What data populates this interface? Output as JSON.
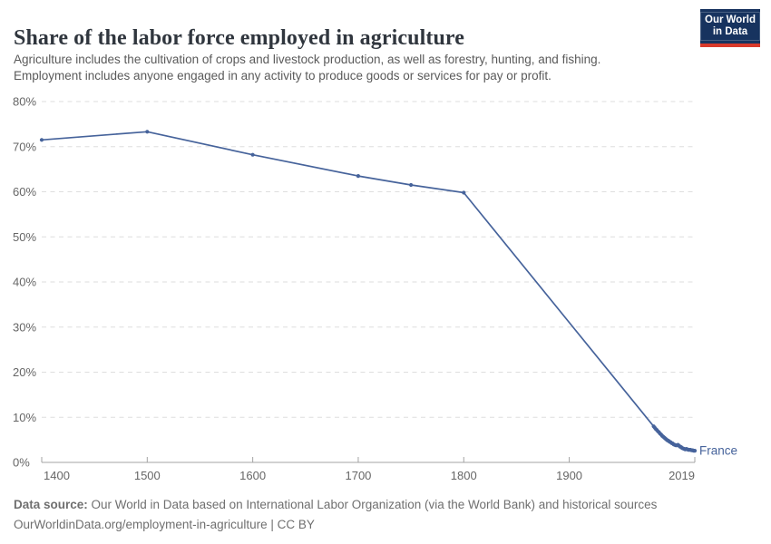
{
  "header": {
    "title": "Share of the labor force employed in agriculture",
    "subtitle_lines": [
      "Agriculture includes the cultivation of crops and livestock production, as well as forestry, hunting, and fishing.",
      "Employment includes anyone engaged in any activity to produce goods or services for pay or profit."
    ],
    "logo": {
      "line1": "Our World",
      "line2": "in Data"
    }
  },
  "chart_data": {
    "type": "line",
    "title": "Share of the labor force employed in agriculture",
    "xlabel": "",
    "ylabel": "",
    "x_range": [
      1400,
      2019
    ],
    "y_range": [
      0,
      80
    ],
    "grid": "horizontal-dashed",
    "legend_position": "end-of-line-label",
    "x_axis": {
      "ticks": [
        {
          "year": 1400,
          "label": "1400",
          "align": "start"
        },
        {
          "year": 1500,
          "label": "1500",
          "align": "middle"
        },
        {
          "year": 1600,
          "label": "1600",
          "align": "middle"
        },
        {
          "year": 1700,
          "label": "1700",
          "align": "middle"
        },
        {
          "year": 1800,
          "label": "1800",
          "align": "middle"
        },
        {
          "year": 1900,
          "label": "1900",
          "align": "middle"
        },
        {
          "year": 2019,
          "label": "2019",
          "align": "end"
        }
      ]
    },
    "y_axis": {
      "ticks": [
        {
          "value": 0,
          "label": "0%"
        },
        {
          "value": 10,
          "label": "10%"
        },
        {
          "value": 20,
          "label": "20%"
        },
        {
          "value": 30,
          "label": "30%"
        },
        {
          "value": 40,
          "label": "40%"
        },
        {
          "value": 50,
          "label": "50%"
        },
        {
          "value": 60,
          "label": "60%"
        },
        {
          "value": 70,
          "label": "70%"
        },
        {
          "value": 80,
          "label": "80%"
        }
      ]
    },
    "series": [
      {
        "name": "France",
        "color": "#46639b",
        "points": [
          [
            1400,
            71.5
          ],
          [
            1500,
            73.3
          ],
          [
            1600,
            68.2
          ],
          [
            1700,
            63.5
          ],
          [
            1750,
            61.5
          ],
          [
            1800,
            59.8
          ],
          [
            1980,
            8.0
          ],
          [
            1981,
            7.7
          ],
          [
            1982,
            7.4
          ],
          [
            1983,
            7.2
          ],
          [
            1984,
            6.9
          ],
          [
            1985,
            6.7
          ],
          [
            1986,
            6.4
          ],
          [
            1987,
            6.2
          ],
          [
            1988,
            5.9
          ],
          [
            1989,
            5.7
          ],
          [
            1990,
            5.5
          ],
          [
            1991,
            5.3
          ],
          [
            1992,
            5.1
          ],
          [
            1993,
            4.9
          ],
          [
            1994,
            4.8
          ],
          [
            1995,
            4.6
          ],
          [
            1996,
            4.5
          ],
          [
            1997,
            4.3
          ],
          [
            1998,
            4.2
          ],
          [
            1999,
            4.0
          ],
          [
            2000,
            3.9
          ],
          [
            2001,
            3.8
          ],
          [
            2002,
            3.8
          ],
          [
            2003,
            3.9
          ],
          [
            2004,
            3.7
          ],
          [
            2005,
            3.5
          ],
          [
            2006,
            3.4
          ],
          [
            2007,
            3.2
          ],
          [
            2008,
            3.1
          ],
          [
            2009,
            3.0
          ],
          [
            2010,
            2.9
          ],
          [
            2011,
            3.0
          ],
          [
            2012,
            2.9
          ],
          [
            2013,
            2.8
          ],
          [
            2014,
            2.8
          ],
          [
            2015,
            2.8
          ],
          [
            2016,
            2.7
          ],
          [
            2017,
            2.7
          ],
          [
            2018,
            2.6
          ],
          [
            2019,
            2.6
          ]
        ]
      }
    ],
    "style": {
      "grid_color": "#dedede",
      "axis_color": "#a3a3a3",
      "tick_text_color": "#666666"
    }
  },
  "footer": {
    "datasource_label": "Data source:",
    "datasource_rest": " Our World in Data based on International Labor Organization (via the World Bank) and historical sources",
    "citation_line": "OurWorldinData.org/employment-in-agriculture | CC BY"
  }
}
